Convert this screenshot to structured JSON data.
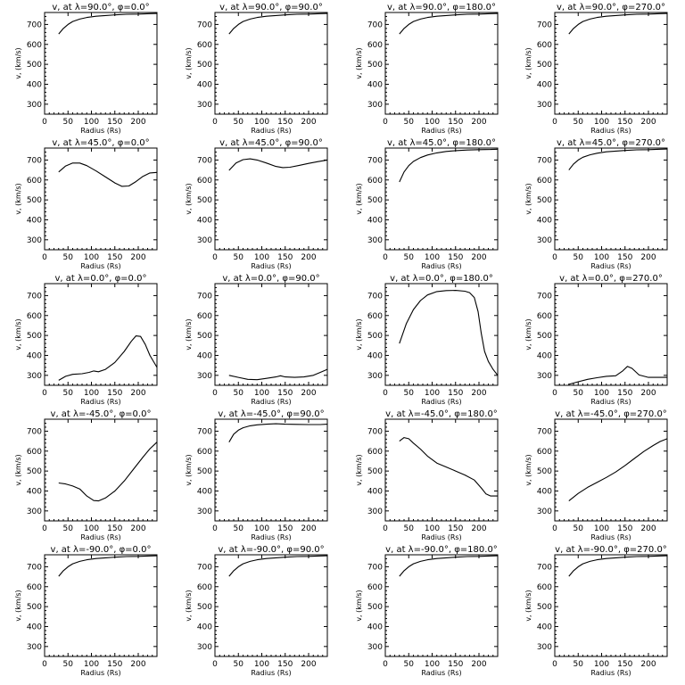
{
  "chart_data": [
    {
      "type": "line",
      "title": "v, at λ=90.0°, φ=0.0°",
      "xlabel": "Radius (Rs)",
      "ylabel": "v, (km/s)",
      "xlim": [
        0,
        240
      ],
      "ylim": [
        250,
        760
      ],
      "x": [
        30,
        40,
        50,
        60,
        75,
        90,
        110,
        130,
        150,
        175,
        200,
        225,
        240
      ],
      "values": [
        652,
        680,
        700,
        715,
        727,
        735,
        741,
        745,
        748,
        751,
        752,
        754,
        755
      ]
    },
    {
      "type": "line",
      "title": "v, at λ=90.0°, φ=90.0°",
      "xlabel": "Radius (Rs)",
      "ylabel": "v, (km/s)",
      "xlim": [
        0,
        240
      ],
      "ylim": [
        250,
        760
      ],
      "x": [
        30,
        40,
        50,
        60,
        75,
        90,
        110,
        130,
        150,
        175,
        200,
        225,
        240
      ],
      "values": [
        652,
        680,
        700,
        715,
        727,
        735,
        741,
        745,
        748,
        751,
        752,
        754,
        755
      ]
    },
    {
      "type": "line",
      "title": "v, at λ=90.0°, φ=180.0°",
      "xlabel": "Radius (Rs)",
      "ylabel": "v, (km/s)",
      "xlim": [
        0,
        240
      ],
      "ylim": [
        250,
        760
      ],
      "x": [
        30,
        40,
        50,
        60,
        75,
        90,
        110,
        130,
        150,
        175,
        200,
        225,
        240
      ],
      "values": [
        652,
        680,
        700,
        715,
        727,
        735,
        741,
        745,
        748,
        751,
        752,
        754,
        755
      ]
    },
    {
      "type": "line",
      "title": "v, at λ=90.0°, φ=270.0°",
      "xlabel": "Radius (Rs)",
      "ylabel": "v, (km/s)",
      "xlim": [
        0,
        240
      ],
      "ylim": [
        250,
        760
      ],
      "x": [
        30,
        40,
        50,
        60,
        75,
        90,
        110,
        130,
        150,
        175,
        200,
        225,
        240
      ],
      "values": [
        652,
        680,
        700,
        715,
        727,
        735,
        741,
        745,
        748,
        751,
        752,
        754,
        755
      ]
    },
    {
      "type": "line",
      "title": "v, at λ=45.0°, φ=0.0°",
      "xlabel": "Radius (Rs)",
      "ylabel": "v, (km/s)",
      "xlim": [
        0,
        240
      ],
      "ylim": [
        250,
        760
      ],
      "x": [
        30,
        45,
        60,
        75,
        90,
        110,
        130,
        150,
        165,
        180,
        195,
        210,
        225,
        240
      ],
      "values": [
        640,
        670,
        685,
        685,
        672,
        645,
        615,
        585,
        568,
        570,
        592,
        618,
        635,
        638
      ]
    },
    {
      "type": "line",
      "title": "v, at λ=45.0°, φ=90.0°",
      "xlabel": "Radius (Rs)",
      "ylabel": "v, (km/s)",
      "xlim": [
        0,
        240
      ],
      "ylim": [
        250,
        760
      ],
      "x": [
        30,
        45,
        60,
        75,
        90,
        110,
        130,
        145,
        160,
        180,
        200,
        220,
        240
      ],
      "values": [
        648,
        685,
        702,
        706,
        700,
        685,
        668,
        662,
        664,
        673,
        683,
        692,
        700
      ]
    },
    {
      "type": "line",
      "title": "v, at λ=45.0°, φ=180.0°",
      "xlabel": "Radius (Rs)",
      "ylabel": "v, (km/s)",
      "xlim": [
        0,
        240
      ],
      "ylim": [
        250,
        760
      ],
      "x": [
        30,
        40,
        50,
        60,
        75,
        90,
        110,
        130,
        150,
        175,
        200,
        225,
        240
      ],
      "values": [
        590,
        640,
        672,
        693,
        712,
        725,
        736,
        743,
        747,
        750,
        752,
        753,
        754
      ]
    },
    {
      "type": "line",
      "title": "v, at λ=45.0°, φ=270.0°",
      "xlabel": "Radius (Rs)",
      "ylabel": "v, (km/s)",
      "xlim": [
        0,
        240
      ],
      "ylim": [
        250,
        760
      ],
      "x": [
        30,
        40,
        50,
        60,
        75,
        90,
        110,
        130,
        150,
        175,
        200,
        225,
        240
      ],
      "values": [
        650,
        680,
        700,
        714,
        726,
        734,
        741,
        745,
        748,
        751,
        752,
        754,
        755
      ]
    },
    {
      "type": "line",
      "title": "v, at λ=0.0°, φ=0.0°",
      "xlabel": "Radius (Rs)",
      "ylabel": "v, (km/s)",
      "xlim": [
        0,
        240
      ],
      "ylim": [
        250,
        760
      ],
      "x": [
        30,
        45,
        60,
        80,
        95,
        105,
        115,
        130,
        150,
        170,
        185,
        195,
        205,
        215,
        225,
        240
      ],
      "values": [
        275,
        295,
        305,
        308,
        315,
        322,
        318,
        330,
        365,
        420,
        470,
        498,
        495,
        455,
        400,
        340
      ]
    },
    {
      "type": "line",
      "title": "v, at λ=0.0°, φ=90.0°",
      "xlabel": "Radius (Rs)",
      "ylabel": "v, (km/s)",
      "xlim": [
        0,
        240
      ],
      "ylim": [
        250,
        760
      ],
      "x": [
        30,
        50,
        70,
        90,
        110,
        130,
        140,
        150,
        170,
        190,
        210,
        225,
        240
      ],
      "values": [
        300,
        290,
        280,
        278,
        285,
        292,
        298,
        292,
        290,
        292,
        300,
        315,
        330
      ]
    },
    {
      "type": "line",
      "title": "v, at λ=0.0°, φ=180.0°",
      "xlabel": "Radius (Rs)",
      "ylabel": "v, (km/s)",
      "xlim": [
        0,
        240
      ],
      "ylim": [
        250,
        760
      ],
      "x": [
        30,
        45,
        60,
        75,
        90,
        110,
        130,
        150,
        170,
        180,
        190,
        198,
        205,
        212,
        220,
        230,
        240
      ],
      "values": [
        460,
        560,
        630,
        675,
        703,
        720,
        725,
        726,
        722,
        715,
        690,
        620,
        510,
        420,
        370,
        330,
        300
      ]
    },
    {
      "type": "line",
      "title": "v, at λ=0.0°, φ=270.0°",
      "xlabel": "Radius (Rs)",
      "ylabel": "v, (km/s)",
      "xlim": [
        0,
        240
      ],
      "ylim": [
        250,
        760
      ],
      "x": [
        30,
        50,
        70,
        90,
        110,
        130,
        145,
        155,
        165,
        180,
        200,
        220,
        240
      ],
      "values": [
        255,
        268,
        280,
        288,
        295,
        298,
        322,
        345,
        335,
        302,
        290,
        290,
        290
      ]
    },
    {
      "type": "line",
      "title": "v, at λ=-45.0°, φ=0.0°",
      "xlabel": "Radius (Rs)",
      "ylabel": "v, (km/s)",
      "xlim": [
        0,
        240
      ],
      "ylim": [
        250,
        760
      ],
      "x": [
        30,
        45,
        60,
        75,
        90,
        105,
        115,
        130,
        150,
        170,
        190,
        210,
        225,
        240
      ],
      "values": [
        440,
        435,
        425,
        410,
        375,
        352,
        350,
        365,
        400,
        450,
        510,
        570,
        612,
        645
      ]
    },
    {
      "type": "line",
      "title": "v, at λ=-45.0°, φ=90.0°",
      "xlabel": "Radius (Rs)",
      "ylabel": "v, (km/s)",
      "xlim": [
        0,
        240
      ],
      "ylim": [
        250,
        760
      ],
      "x": [
        30,
        40,
        50,
        60,
        75,
        90,
        110,
        130,
        150,
        175,
        200,
        225,
        240
      ],
      "values": [
        645,
        685,
        705,
        717,
        727,
        732,
        735,
        737,
        735,
        734,
        733,
        733,
        735
      ]
    },
    {
      "type": "line",
      "title": "v, at λ=-45.0°, φ=180.0°",
      "xlabel": "Radius (Rs)",
      "ylabel": "v, (km/s)",
      "xlim": [
        0,
        240
      ],
      "ylim": [
        250,
        760
      ],
      "x": [
        30,
        40,
        50,
        60,
        75,
        90,
        110,
        130,
        150,
        170,
        190,
        205,
        215,
        225,
        240
      ],
      "values": [
        650,
        668,
        662,
        640,
        610,
        575,
        540,
        520,
        500,
        480,
        455,
        415,
        385,
        375,
        375
      ]
    },
    {
      "type": "line",
      "title": "v, at λ=-45.0°, φ=270.0°",
      "xlabel": "Radius (Rs)",
      "ylabel": "v, (km/s)",
      "xlim": [
        0,
        240
      ],
      "ylim": [
        250,
        760
      ],
      "x": [
        30,
        50,
        70,
        90,
        110,
        130,
        150,
        170,
        190,
        210,
        225,
        240
      ],
      "values": [
        350,
        388,
        418,
        443,
        468,
        495,
        528,
        563,
        598,
        628,
        648,
        662
      ]
    },
    {
      "type": "line",
      "title": "v, at λ=-90.0°, φ=0.0°",
      "xlabel": "Radius (Rs)",
      "ylabel": "v, (km/s)",
      "xlim": [
        0,
        240
      ],
      "ylim": [
        250,
        760
      ],
      "x": [
        30,
        40,
        50,
        60,
        75,
        90,
        110,
        130,
        150,
        175,
        200,
        225,
        240
      ],
      "values": [
        652,
        680,
        700,
        715,
        727,
        735,
        741,
        745,
        748,
        751,
        752,
        754,
        755
      ]
    },
    {
      "type": "line",
      "title": "v, at λ=-90.0°, φ=90.0°",
      "xlabel": "Radius (Rs)",
      "ylabel": "v, (km/s)",
      "xlim": [
        0,
        240
      ],
      "ylim": [
        250,
        760
      ],
      "x": [
        30,
        40,
        50,
        60,
        75,
        90,
        110,
        130,
        150,
        175,
        200,
        225,
        240
      ],
      "values": [
        652,
        680,
        700,
        715,
        727,
        735,
        741,
        745,
        748,
        751,
        752,
        754,
        755
      ]
    },
    {
      "type": "line",
      "title": "v, at λ=-90.0°, φ=180.0°",
      "xlabel": "Radius (Rs)",
      "ylabel": "v, (km/s)",
      "xlim": [
        0,
        240
      ],
      "ylim": [
        250,
        760
      ],
      "x": [
        30,
        40,
        50,
        60,
        75,
        90,
        110,
        130,
        150,
        175,
        200,
        225,
        240
      ],
      "values": [
        652,
        680,
        700,
        715,
        727,
        735,
        741,
        745,
        748,
        751,
        752,
        754,
        755
      ]
    },
    {
      "type": "line",
      "title": "v, at λ=-90.0°, φ=270.0°",
      "xlabel": "Radius (Rs)",
      "ylabel": "v, (km/s)",
      "xlim": [
        0,
        240
      ],
      "ylim": [
        250,
        760
      ],
      "x": [
        30,
        40,
        50,
        60,
        75,
        90,
        110,
        130,
        150,
        175,
        200,
        225,
        240
      ],
      "values": [
        652,
        680,
        700,
        715,
        727,
        735,
        741,
        745,
        748,
        751,
        752,
        754,
        755
      ]
    }
  ],
  "axes": {
    "x_ticks": [
      "0",
      "50",
      "100",
      "150",
      "200"
    ],
    "x_tick_values": [
      0,
      50,
      100,
      150,
      200
    ],
    "y_ticks": [
      "300",
      "400",
      "500",
      "600",
      "700"
    ],
    "y_tick_values": [
      300,
      400,
      500,
      600,
      700
    ]
  }
}
